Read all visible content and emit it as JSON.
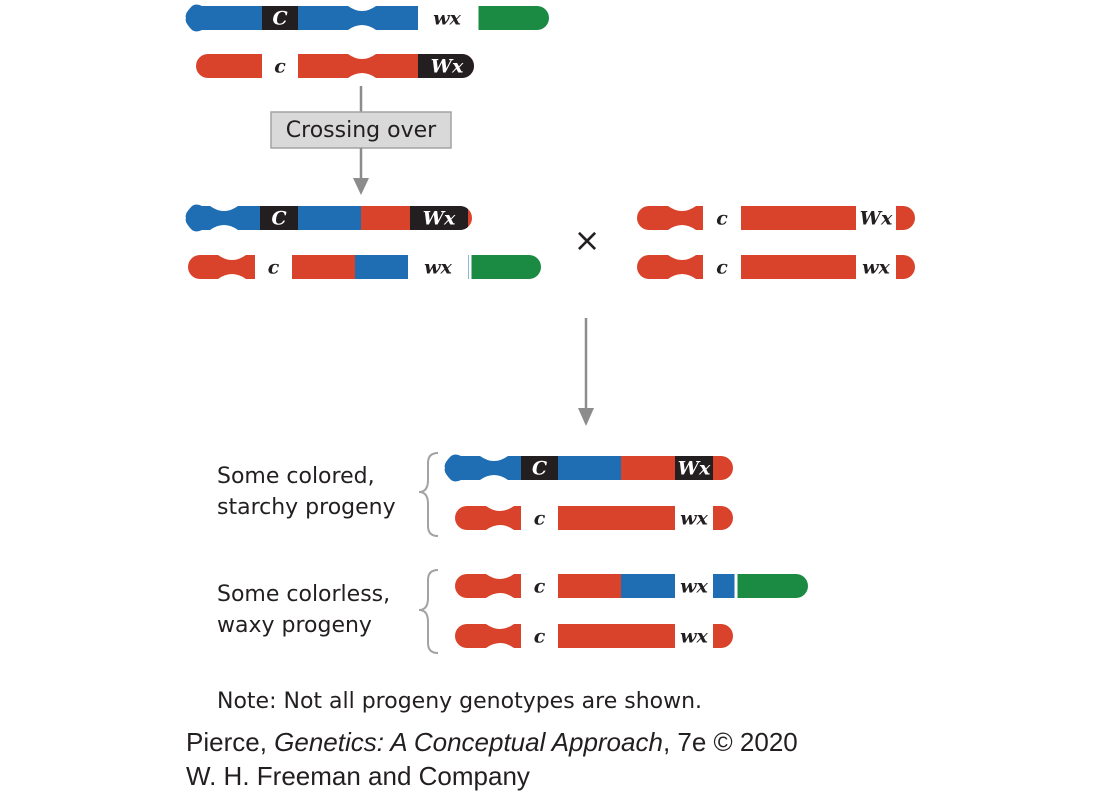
{
  "colors": {
    "blue": "#1f6eb4",
    "red": "#d9432b",
    "green": "#1b8b43",
    "black_band": "#231f20",
    "white_band": "#ffffff",
    "arrow": "#8c8c8c",
    "box_fill": "#d9d9d9"
  },
  "process_label": "Crossing over",
  "cross_symbol": "×",
  "genes": {
    "C": "C",
    "c": "c",
    "Wx": "Wx",
    "wx": "wx"
  },
  "chromosome_pairs": [
    {
      "id": "parent-before",
      "top": [
        "blue",
        "C",
        "wx",
        "green"
      ],
      "bottom": [
        "red",
        "c",
        "Wx"
      ]
    },
    {
      "id": "recombinant-parent",
      "top": [
        "blue",
        "C",
        "red",
        "Wx"
      ],
      "bottom": [
        "red",
        "c",
        "blue",
        "wx",
        "green"
      ]
    },
    {
      "id": "tester-parent",
      "top": [
        "red",
        "c",
        "Wx"
      ],
      "bottom": [
        "red",
        "c",
        "wx"
      ]
    }
  ],
  "progeny_groups": [
    {
      "label_line1": "Some colored,",
      "label_line2": "starchy progeny"
    },
    {
      "label_line1": "Some colorless,",
      "label_line2": "waxy progeny"
    }
  ],
  "note": "Note: Not all progeny genotypes are shown.",
  "credit": {
    "author": "Pierce,",
    "book_title": "Genetics: A Conceptual Approach",
    "edition": ", 7e © 2020",
    "publisher": "W. H. Freeman and Company"
  }
}
